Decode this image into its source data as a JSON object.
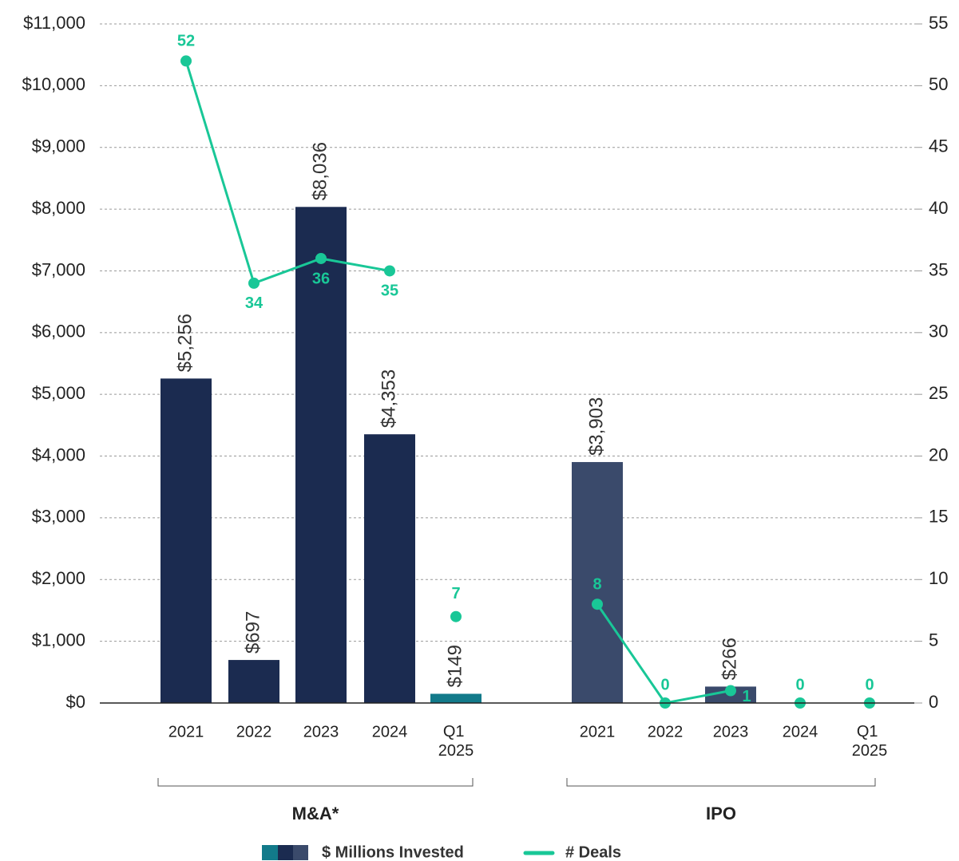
{
  "chart_data": {
    "type": "bar",
    "ylim": [
      0,
      11000
    ],
    "yticks": [
      {
        "value": 0,
        "label": "$0"
      },
      {
        "value": 1000,
        "label": "$1,000"
      },
      {
        "value": 2000,
        "label": "$2,000"
      },
      {
        "value": 3000,
        "label": "$3,000"
      },
      {
        "value": 4000,
        "label": "$4,000"
      },
      {
        "value": 5000,
        "label": "$5,000"
      },
      {
        "value": 6000,
        "label": "$6,000"
      },
      {
        "value": 7000,
        "label": "$7,000"
      },
      {
        "value": 8000,
        "label": "$8,000"
      },
      {
        "value": 9000,
        "label": "$9,000"
      },
      {
        "value": 10000,
        "label": "$10,000"
      },
      {
        "value": 11000,
        "label": "$11,000"
      }
    ],
    "y2lim": [
      0,
      55
    ],
    "y2ticks": [
      0,
      5,
      10,
      15,
      20,
      25,
      30,
      35,
      40,
      45,
      50,
      55
    ],
    "grid": true,
    "legend_colors": [
      "#127a8a",
      "#1b2b50",
      "#3a4a6b"
    ],
    "groups": [
      {
        "label": "M&A*",
        "categories": [
          "2021",
          "2022",
          "2023",
          "2024",
          "Q1 2025"
        ],
        "series": [
          {
            "name": "$ Millions Invested",
            "colors": [
              "#1b2b50",
              "#1b2b50",
              "#1b2b50",
              "#1b2b50",
              "#127a8a"
            ],
            "values": [
              5256,
              697,
              8036,
              4353,
              149
            ],
            "value_labels": [
              "$5,256",
              "$697",
              "$8,036",
              "$4,353",
              "$149"
            ]
          },
          {
            "name": "# Deals",
            "axis": "y2",
            "color": "#19c797",
            "values": [
              52,
              34,
              36,
              35,
              7
            ],
            "connected_through": 3
          }
        ]
      },
      {
        "label": "IPO",
        "categories": [
          "2021",
          "2022",
          "2023",
          "2024",
          "Q1 2025"
        ],
        "series": [
          {
            "name": "$ Millions Invested",
            "colors": [
              "#3a4a6b",
              "#3a4a6b",
              "#3a4a6b",
              "#3a4a6b",
              "#3a4a6b"
            ],
            "values": [
              3903,
              null,
              266,
              null,
              null
            ],
            "value_labels": [
              "$3,903",
              null,
              "$266",
              null,
              null
            ]
          },
          {
            "name": "# Deals",
            "axis": "y2",
            "color": "#19c797",
            "values": [
              8,
              0,
              1,
              0,
              0
            ],
            "connected_through": 2
          }
        ]
      }
    ]
  }
}
